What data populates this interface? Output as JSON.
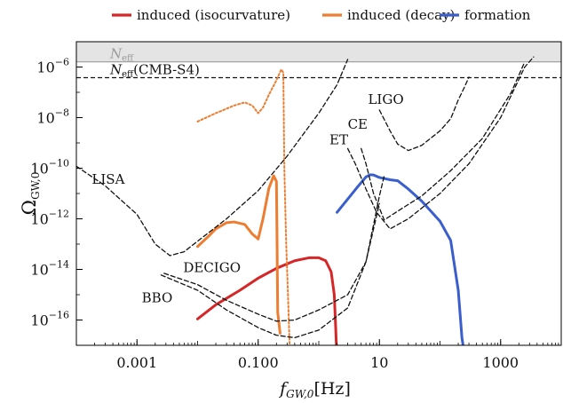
{
  "chart_data": {
    "type": "line",
    "xlabel_main": "f",
    "xlabel_sub": "GW,0",
    "xlabel_unit": "[Hz]",
    "ylabel_main": "Ω",
    "ylabel_sub": "GW,0",
    "xscale": "log",
    "yscale": "log",
    "xlim": [
      0.0001,
      10000
    ],
    "ylim": [
      1e-17,
      1e-05
    ],
    "grid": false,
    "legend_position": "top",
    "x_ticks": [
      {
        "v": 0.001,
        "label": "0.001"
      },
      {
        "v": 0.1,
        "label": "0.100"
      },
      {
        "v": 10,
        "label": "10"
      },
      {
        "v": 1000,
        "label": "1000"
      }
    ],
    "y_ticks": [
      {
        "v": 1e-06,
        "base": "10",
        "exp": "−6"
      },
      {
        "v": 1e-08,
        "base": "10",
        "exp": "−8"
      },
      {
        "v": 1e-10,
        "base": "10",
        "exp": "−10"
      },
      {
        "v": 1e-12,
        "base": "10",
        "exp": "−12"
      },
      {
        "v": 1e-14,
        "base": "10",
        "exp": "−14"
      },
      {
        "v": 1e-16,
        "base": "10",
        "exp": "−16"
      }
    ],
    "bands": [
      {
        "name": "Neff",
        "label_main": "N",
        "label_sub": "eff",
        "y_min": 1.6e-06,
        "y_max": 1e-05,
        "color": "#e4e4e4",
        "edge": "#9a9a9a"
      }
    ],
    "hlines": [
      {
        "name": "Neff(CMB-S4)",
        "label_main": "N",
        "label_sub": "eff",
        "label_rest": "(CMB-S4)",
        "y": 3.8e-07,
        "style": "dashed"
      }
    ],
    "series": [
      {
        "name": "induced (isocurvature)",
        "color": "#d62728",
        "style": "solid",
        "width": 3,
        "points": [
          [
            0.01,
            1.1e-16
          ],
          [
            0.02,
            4e-16
          ],
          [
            0.05,
            1.5e-15
          ],
          [
            0.1,
            4.5e-15
          ],
          [
            0.2,
            1.1e-14
          ],
          [
            0.4,
            2.2e-14
          ],
          [
            0.7,
            2.9e-14
          ],
          [
            1.0,
            2.9e-14
          ],
          [
            1.3,
            2.2e-14
          ],
          [
            1.6,
            8e-15
          ],
          [
            1.8,
            1e-15
          ],
          [
            1.9,
            5e-17
          ],
          [
            1.95,
            1e-17
          ]
        ]
      },
      {
        "name": "induced (decay)",
        "color": "#ed7d31",
        "style": "solid",
        "width": 3,
        "points": [
          [
            0.01,
            8e-14
          ],
          [
            0.015,
            2e-13
          ],
          [
            0.02,
            4e-13
          ],
          [
            0.03,
            7e-13
          ],
          [
            0.04,
            7.5e-13
          ],
          [
            0.06,
            6e-13
          ],
          [
            0.08,
            2.5e-13
          ],
          [
            0.1,
            1.6e-13
          ],
          [
            0.12,
            1e-12
          ],
          [
            0.15,
            1.6e-11
          ],
          [
            0.18,
            5e-11
          ],
          [
            0.2,
            3e-11
          ],
          [
            0.205,
            1e-13
          ],
          [
            0.21,
            2e-16
          ],
          [
            0.23,
            3e-17
          ]
        ]
      },
      {
        "name": "induced (decay) dotted",
        "color": "#ed7d31",
        "style": "dotted",
        "width": 2,
        "points": [
          [
            0.01,
            7e-09
          ],
          [
            0.02,
            1.5e-08
          ],
          [
            0.04,
            3e-08
          ],
          [
            0.06,
            4e-08
          ],
          [
            0.08,
            3e-08
          ],
          [
            0.1,
            1.5e-08
          ],
          [
            0.12,
            2.5e-08
          ],
          [
            0.15,
            8e-08
          ],
          [
            0.2,
            3e-07
          ],
          [
            0.24,
            8e-07
          ],
          [
            0.26,
            6e-07
          ],
          [
            0.27,
            1e-10
          ],
          [
            0.29,
            1e-13
          ],
          [
            0.31,
            1e-15
          ],
          [
            0.33,
            1e-17
          ]
        ]
      },
      {
        "name": "formation",
        "color": "#3a5fcd",
        "style": "solid",
        "width": 3,
        "points": [
          [
            2,
            1.8e-12
          ],
          [
            3,
            6e-12
          ],
          [
            4.5,
            2e-11
          ],
          [
            6,
            4.5e-11
          ],
          [
            7,
            5.5e-11
          ],
          [
            8,
            5.4e-11
          ],
          [
            10,
            4.3e-11
          ],
          [
            15,
            3.5e-11
          ],
          [
            20,
            3.2e-11
          ],
          [
            30,
            1.5e-11
          ],
          [
            50,
            5e-12
          ],
          [
            100,
            8e-13
          ],
          [
            150,
            1.4e-13
          ],
          [
            200,
            1.5e-15
          ],
          [
            230,
            2e-17
          ],
          [
            240,
            1e-17
          ]
        ]
      },
      {
        "name": "LISA",
        "label": "LISA",
        "color": "#111111",
        "style": "dashed",
        "width": 1.3,
        "points": [
          [
            0.0001,
            1.2e-10
          ],
          [
            0.0003,
            2e-11
          ],
          [
            0.001,
            1.5e-12
          ],
          [
            0.002,
            1e-13
          ],
          [
            0.0035,
            3.5e-14
          ],
          [
            0.006,
            5e-14
          ],
          [
            0.01,
            1.3e-13
          ],
          [
            0.03,
            1e-12
          ],
          [
            0.1,
            1.3e-11
          ],
          [
            0.3,
            3e-10
          ],
          [
            1,
            1.5e-08
          ],
          [
            2,
            2e-07
          ],
          [
            3,
            2e-06
          ]
        ]
      },
      {
        "name": "DECIGO",
        "label": "DECIGO",
        "color": "#111111",
        "style": "dashed",
        "width": 1.3,
        "points": [
          [
            0.0028,
            7e-15
          ],
          [
            0.01,
            2.5e-15
          ],
          [
            0.03,
            6e-16
          ],
          [
            0.1,
            1.7e-16
          ],
          [
            0.2,
            9e-17
          ],
          [
            0.4,
            1e-16
          ],
          [
            1,
            2.5e-16
          ],
          [
            3,
            1e-15
          ],
          [
            6,
            2e-14
          ],
          [
            10,
            8e-12
          ],
          [
            12,
            5e-11
          ]
        ]
      },
      {
        "name": "BBO",
        "label": "BBO",
        "color": "#111111",
        "style": "dashed",
        "width": 1.3,
        "points": [
          [
            0.0025,
            6e-15
          ],
          [
            0.01,
            1.5e-15
          ],
          [
            0.03,
            2.5e-16
          ],
          [
            0.1,
            5e-17
          ],
          [
            0.2,
            2.5e-17
          ],
          [
            0.4,
            2e-17
          ],
          [
            1,
            4e-17
          ],
          [
            3,
            3e-16
          ],
          [
            6,
            2e-14
          ],
          [
            10,
            4e-12
          ]
        ]
      },
      {
        "name": "ET",
        "label": "ET",
        "color": "#111111",
        "style": "dashed",
        "width": 1.3,
        "points": [
          [
            3,
            6e-10
          ],
          [
            4,
            1.5e-10
          ],
          [
            6,
            1.5e-11
          ],
          [
            9,
            1.8e-12
          ],
          [
            15,
            4e-13
          ],
          [
            30,
            1e-12
          ],
          [
            100,
            1e-11
          ],
          [
            300,
            1.5e-10
          ],
          [
            1000,
            1e-08
          ],
          [
            2500,
            1e-06
          ],
          [
            3500,
            2.5e-06
          ]
        ]
      },
      {
        "name": "CE",
        "label": "CE",
        "color": "#111111",
        "style": "dashed",
        "width": 1.3,
        "points": [
          [
            5,
            6e-10
          ],
          [
            6,
            1.5e-10
          ],
          [
            8,
            1e-11
          ],
          [
            12,
            9e-13
          ],
          [
            20,
            2e-12
          ],
          [
            50,
            8e-12
          ],
          [
            150,
            8e-11
          ],
          [
            500,
            1.5e-09
          ],
          [
            1500,
            1e-07
          ],
          [
            2500,
            1.6e-06
          ]
        ]
      },
      {
        "name": "LIGO",
        "label": "LIGO",
        "color": "#111111",
        "style": "dashed",
        "width": 1.3,
        "points": [
          [
            10,
            2e-08
          ],
          [
            15,
            3e-09
          ],
          [
            20,
            9e-10
          ],
          [
            30,
            5e-10
          ],
          [
            50,
            8e-10
          ],
          [
            100,
            3e-09
          ],
          [
            150,
            9e-09
          ],
          [
            200,
            5e-08
          ],
          [
            250,
            1.5e-07
          ],
          [
            300,
            4e-07
          ]
        ]
      }
    ],
    "legend": [
      {
        "label": "induced (isocurvature)",
        "color": "#d62728"
      },
      {
        "label": "induced (decay)",
        "color": "#ed7d31"
      },
      {
        "label": "formation",
        "color": "#3a5fcd"
      }
    ],
    "annotations": [
      {
        "text": "LISA",
        "x": 0.00018,
        "y": 2.4e-11
      },
      {
        "text": "DECIGO",
        "x": 0.0058,
        "y": 8e-15
      },
      {
        "text": "BBO",
        "x": 0.0012,
        "y": 5e-16
      },
      {
        "text": "ET",
        "x": 1.5,
        "y": 9e-10
      },
      {
        "text": "CE",
        "x": 3.0,
        "y": 3.7e-09
      },
      {
        "text": "LIGO",
        "x": 6.5,
        "y": 3.5e-08
      }
    ]
  }
}
